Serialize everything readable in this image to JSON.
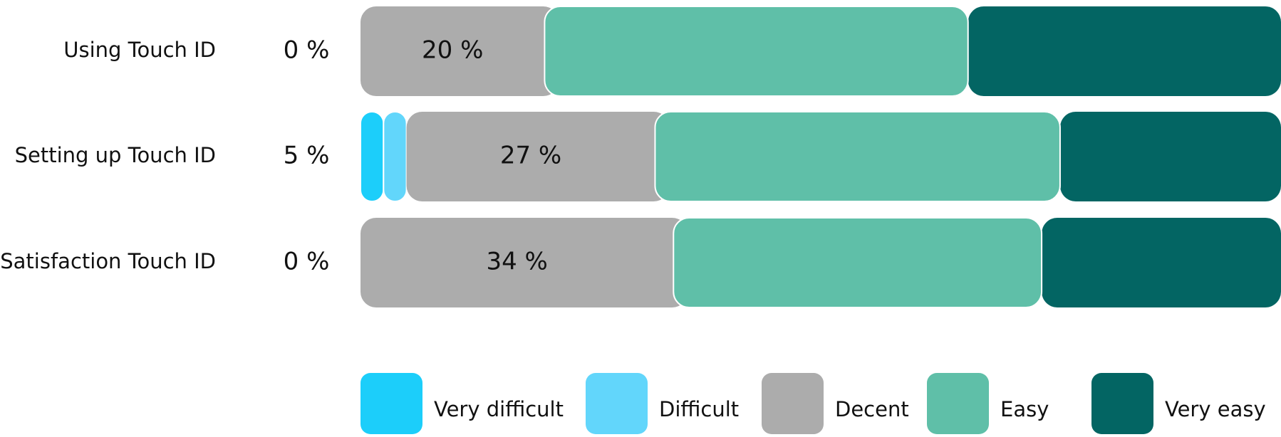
{
  "chart_data": {
    "type": "stacked-bar",
    "categories": [
      "Using Touch ID",
      "Setting up Touch ID",
      "Satisfaction Touch ID"
    ],
    "side_labels": [
      "0 %",
      "5 %",
      "0 %"
    ],
    "series": [
      {
        "name": "Very difficult",
        "color": "#1ccefa",
        "values": [
          0,
          2.5,
          0
        ]
      },
      {
        "name": "Difficult",
        "color": "#62d6fb",
        "values": [
          0,
          2.5,
          0
        ]
      },
      {
        "name": "Decent",
        "color": "#acacac",
        "values": [
          20,
          27,
          34
        ],
        "value_labels": [
          "20 %",
          "27 %",
          "34 %"
        ]
      },
      {
        "name": "Easy",
        "color": "#5fbfa8",
        "values": [
          46,
          44,
          40
        ]
      },
      {
        "name": "Very easy",
        "color": "#036563",
        "values": [
          34,
          24,
          26
        ]
      }
    ]
  }
}
